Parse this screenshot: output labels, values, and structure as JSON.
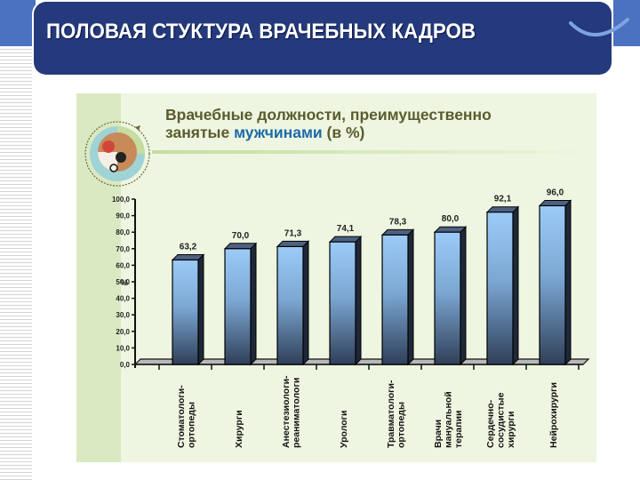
{
  "slide": {
    "title": "ПОЛОВАЯ СТУКТУРА ВРАЧЕБНЫХ КАДРОВ"
  },
  "panel": {
    "subtitle_line1": "Врачебные должности, преимущественно",
    "subtitle_line2_prefix": "занятые ",
    "subtitle_line2_highlight": "мужчинами",
    "subtitle_line2_suffix": " (в %)",
    "logo_icon": "medical-photo-circle-icon"
  },
  "colors": {
    "title_bg": "#243a7c",
    "accent_band": "#4a72c0",
    "panel_bg": "#eef6e1",
    "subtitle_text": "#5b5b2e",
    "subtitle_highlight": "#1b6aa8",
    "bar_top": "#9ccbf7",
    "bar_bottom": "#2f3f58"
  },
  "chart_data": {
    "type": "bar",
    "title": "Врачебные должности, преимущественно занятые мужчинами (в %)",
    "xlabel": "",
    "ylabel": "%",
    "ylim": [
      0,
      100
    ],
    "yticks": [
      "0,0",
      "10,0",
      "20,0",
      "30,0",
      "40,0",
      "50,0",
      "60,0",
      "70,0",
      "80,0",
      "90,0",
      "100,0"
    ],
    "categories": [
      "Стоматологи-\nортопеды",
      "Хирурги",
      "Анестезиологи-\nреаниматологи",
      "Урологи",
      "Травматологи-\nортопеды",
      "Врачи\nмануальной\nтерапии",
      "Сердечно-\nсосудистые\nхирурги",
      "Нейрохирурги"
    ],
    "values": [
      63.2,
      70.0,
      71.3,
      74.1,
      78.3,
      80.0,
      92.1,
      96.0
    ],
    "value_labels": [
      "63,2",
      "70,0",
      "71,3",
      "74,1",
      "78,3",
      "80,0",
      "92,1",
      "96,0"
    ],
    "grid": false,
    "legend": "none",
    "style": "3d-columns"
  }
}
